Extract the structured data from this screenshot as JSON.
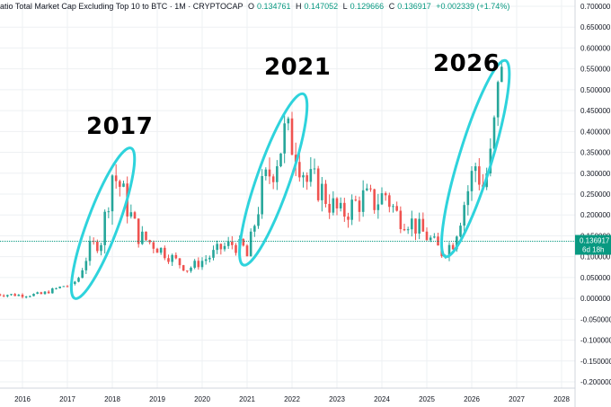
{
  "header": {
    "title": "atio Total Market Cap Excluding Top 10 to BTC · 1M · CRYPTOCAP",
    "open_k": "O",
    "open_v": "0.134761",
    "high_k": "H",
    "high_v": "0.147052",
    "low_k": "L",
    "low_v": "0.129666",
    "close_k": "C",
    "close_v": "0.136917",
    "change": "+0.002339 (+1.74%)"
  },
  "annotations": [
    "2017",
    "2021",
    "2026"
  ],
  "last_price": {
    "value": "0.136917",
    "countdown": "6d 18h"
  },
  "colors": {
    "up": "#26a69a",
    "down": "#ef5350",
    "last_line": "#089981",
    "ellipse": "#2ed3dc",
    "grid": "#eef0f3",
    "axis_text": "#131722"
  },
  "chart_data": {
    "type": "candlestick",
    "title": "",
    "x_tick_labels": [
      "2016",
      "2017",
      "2018",
      "2019",
      "2020",
      "2021",
      "2022",
      "2023",
      "2024",
      "2025",
      "2026",
      "2027",
      "2028"
    ],
    "y_tick_labels": [
      "0.700000",
      "0.650000",
      "0.600000",
      "0.550000",
      "0.500000",
      "0.450000",
      "0.400000",
      "0.350000",
      "0.300000",
      "0.250000",
      "0.200000",
      "0.150000",
      "0.100000",
      "0.050000",
      "0.000000",
      "-0.050000",
      "-0.100000",
      "-0.150000",
      "-0.200000"
    ],
    "ylim": [
      -0.215,
      0.715
    ],
    "xlim": [
      2015.5,
      2028.3
    ],
    "grid": true,
    "highlight_ellipses": [
      {
        "label": "2017",
        "from": "2017-03",
        "to": "2018-06",
        "low": 0.0,
        "high": 0.36
      },
      {
        "label": "2021",
        "from": "2020-12",
        "to": "2022-04",
        "low": 0.08,
        "high": 0.49
      },
      {
        "label": "2026",
        "from": "2025-06",
        "to": "2026-10",
        "low": 0.1,
        "high": 0.57
      }
    ],
    "keypoints": [
      [
        "2015-06",
        0.01
      ],
      [
        "2016-01",
        0.008
      ],
      [
        "2016-06",
        0.01
      ],
      [
        "2016-12",
        0.03
      ],
      [
        "2017-02",
        0.03
      ],
      [
        "2017-04",
        0.05
      ],
      [
        "2017-07",
        0.12
      ],
      [
        "2017-10",
        0.14
      ],
      [
        "2018-01",
        0.3
      ],
      [
        "2018-03",
        0.27
      ],
      [
        "2018-05",
        0.22
      ],
      [
        "2018-08",
        0.15
      ],
      [
        "2018-12",
        0.13
      ],
      [
        "2019-03",
        0.11
      ],
      [
        "2019-06",
        0.09
      ],
      [
        "2019-09",
        0.07
      ],
      [
        "2019-12",
        0.085
      ],
      [
        "2020-03",
        0.1
      ],
      [
        "2020-06",
        0.12
      ],
      [
        "2020-09",
        0.13
      ],
      [
        "2020-12",
        0.12
      ],
      [
        "2021-01",
        0.1
      ],
      [
        "2021-03",
        0.18
      ],
      [
        "2021-05",
        0.26
      ],
      [
        "2021-08",
        0.32
      ],
      [
        "2021-11",
        0.39
      ],
      [
        "2022-02",
        0.37
      ],
      [
        "2022-05",
        0.28
      ],
      [
        "2022-08",
        0.27
      ],
      [
        "2022-11",
        0.23
      ],
      [
        "2023-02",
        0.2
      ],
      [
        "2023-05",
        0.22
      ],
      [
        "2023-08",
        0.24
      ],
      [
        "2023-11",
        0.23
      ],
      [
        "2024-02",
        0.25
      ],
      [
        "2024-05",
        0.2
      ],
      [
        "2024-08",
        0.19
      ],
      [
        "2024-11",
        0.165
      ],
      [
        "2025-02",
        0.14
      ],
      [
        "2025-05",
        0.11
      ],
      [
        "2025-08",
        0.135
      ],
      [
        "2025-11",
        0.23
      ],
      [
        "2026-02",
        0.32
      ],
      [
        "2026-04",
        0.27
      ],
      [
        "2026-06",
        0.33
      ],
      [
        "2026-08",
        0.48
      ],
      [
        "2026-09",
        0.55
      ]
    ]
  }
}
